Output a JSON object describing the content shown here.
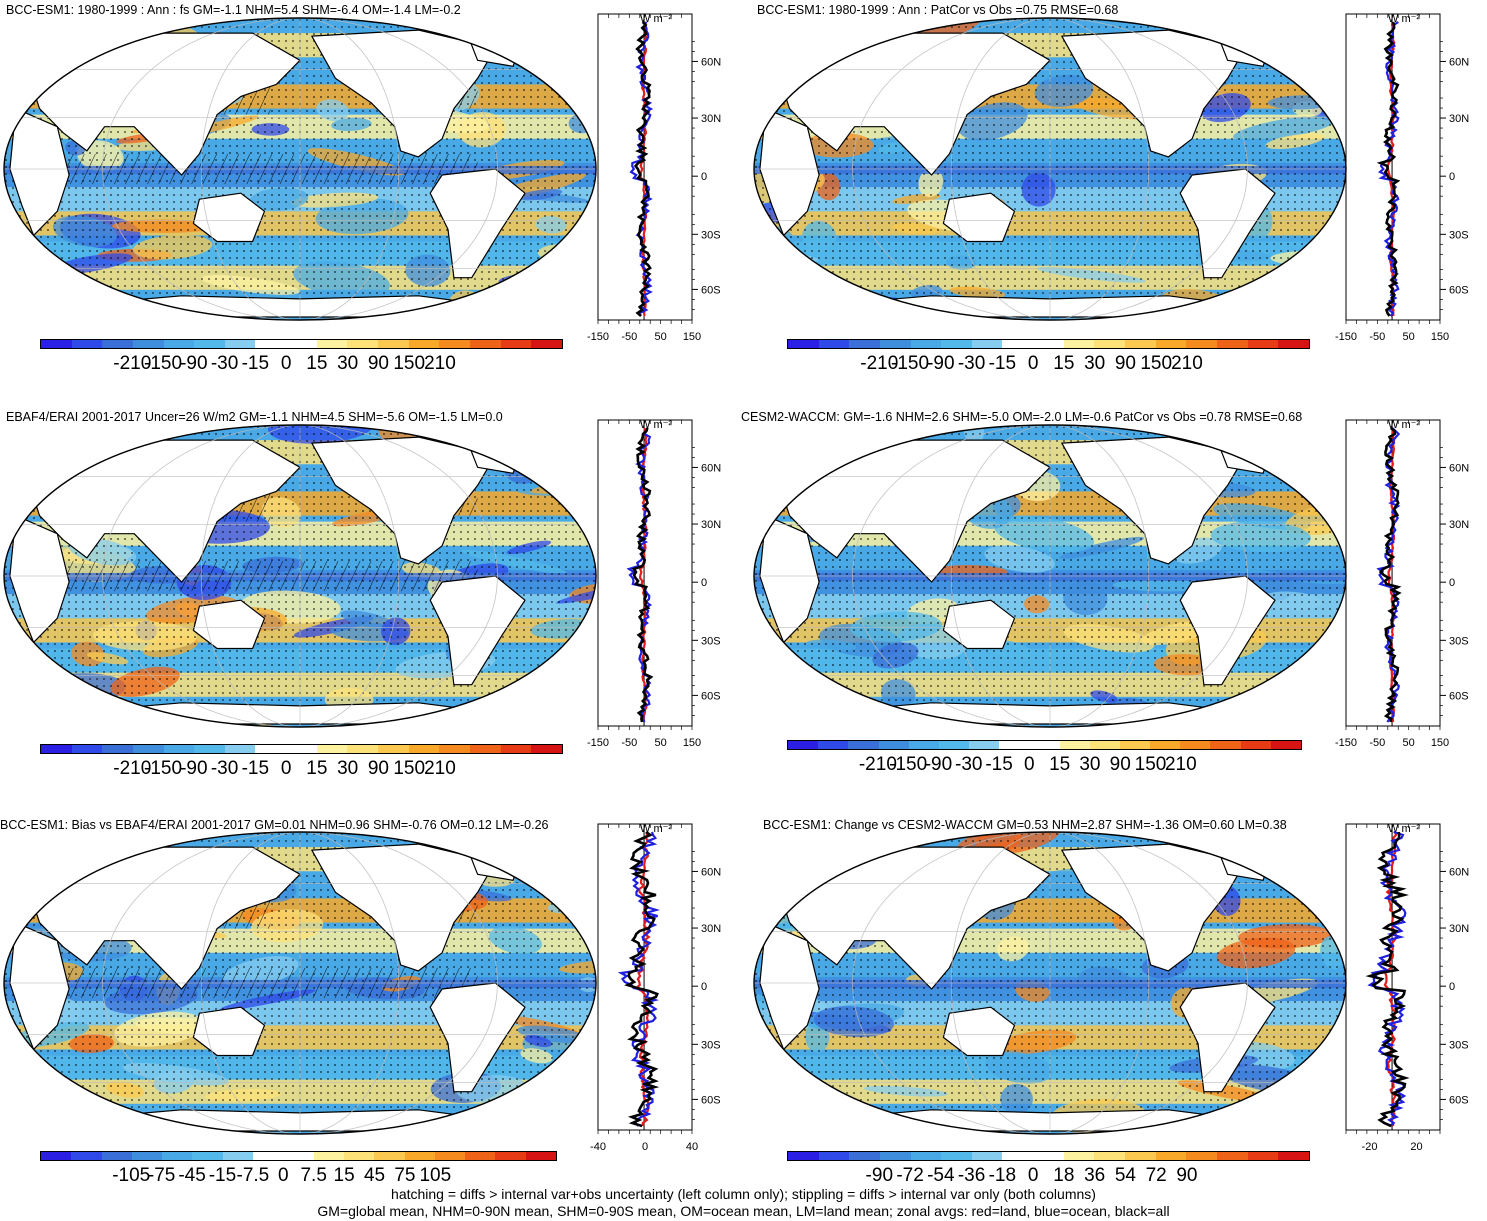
{
  "panels": [
    {
      "title": "BCC-ESM1: 1980-1999 : Ann : fs GM=-1.1 NHM=5.4 SHM=-6.4 OM=-1.4 LM=-0.2",
      "colorbar": [
        "-210",
        "-150",
        "-90",
        "-30",
        "-15",
        "0",
        "15",
        "30",
        "90",
        "150",
        "210"
      ],
      "profile_xticks": [
        "-150",
        "-50",
        "50",
        "150"
      ],
      "hatch": true
    },
    {
      "title": "BCC-ESM1: 1980-1999 : Ann : PatCor vs Obs =0.75 RMSE=0.68",
      "colorbar": [
        "-210",
        "-150",
        "-90",
        "-30",
        "-15",
        "0",
        "15",
        "30",
        "90",
        "150",
        "210"
      ],
      "profile_xticks": [
        "-150",
        "-50",
        "50",
        "150"
      ],
      "hatch": false
    },
    {
      "title": "EBAF4/ERAI 2001-2017 Uncer=26 W/m2 GM=-1.1 NHM=4.5 SHM=-5.6 OM=-1.5 LM=0.0",
      "colorbar": [
        "-210",
        "-150",
        "-90",
        "-30",
        "-15",
        "0",
        "15",
        "30",
        "90",
        "150",
        "210"
      ],
      "profile_xticks": [
        "-150",
        "-50",
        "50",
        "150"
      ],
      "hatch": true
    },
    {
      "title": "CESM2-WACCM: GM=-1.6 NHM=2.6 SHM=-5.0 OM=-2.0 LM=-0.6 PatCor vs Obs =0.78 RMSE=0.68",
      "colorbar": [
        "-210",
        "-150",
        "-90",
        "-30",
        "-15",
        "0",
        "15",
        "30",
        "90",
        "150",
        "210"
      ],
      "profile_xticks": [
        "-150",
        "-50",
        "50",
        "150"
      ],
      "hatch": false
    },
    {
      "title": "BCC-ESM1: Bias vs EBAF4/ERAI 2001-2017 GM=0.01 NHM=0.96 SHM=-0.76 OM=0.12 LM=-0.26",
      "colorbar": [
        "-105",
        "-75",
        "-45",
        "-15",
        "-7.5",
        "0",
        "7.5",
        "15",
        "45",
        "75",
        "105"
      ],
      "profile_xticks": [
        "-40",
        "0",
        "40"
      ],
      "hatch": true
    },
    {
      "title": "BCC-ESM1: Change vs CESM2-WACCM GM=0.53 NHM=2.87 SHM=-1.36 OM=0.60 LM=0.38",
      "colorbar": [
        "-90",
        "-72",
        "-54",
        "-36",
        "-18",
        "0",
        "18",
        "36",
        "54",
        "72",
        "90"
      ],
      "profile_xticks": [
        "-20",
        "20"
      ],
      "hatch": false
    }
  ],
  "lat_ticks": [
    "60N",
    "30N",
    "0",
    "30S",
    "60S"
  ],
  "profile_units": "W m⁻²",
  "colorbar_colors": [
    "#2a1fe3",
    "#2f4ae8",
    "#3a6fd8",
    "#3f8ddd",
    "#48a9e6",
    "#53b9ea",
    "#86cdef",
    "#ffffff",
    "#ffffff",
    "#fdf2a0",
    "#fde27a",
    "#fbc94f",
    "#f8a92a",
    "#f58a1f",
    "#ef6318",
    "#e63b15",
    "#d61414"
  ],
  "profile_line_colors": {
    "land": "#e41a1c",
    "ocean": "#1f1fe0",
    "all": "#000000"
  },
  "footer": [
    "hatching = diffs > internal var+obs uncertainty (left column only); stippling = diffs > internal var only (both columns)",
    "GM=global mean, NHM=0-90N mean, SHM=0-90S mean, OM=ocean mean, LM=land mean; zonal avgs: red=land, blue=ocean, black=all"
  ]
}
